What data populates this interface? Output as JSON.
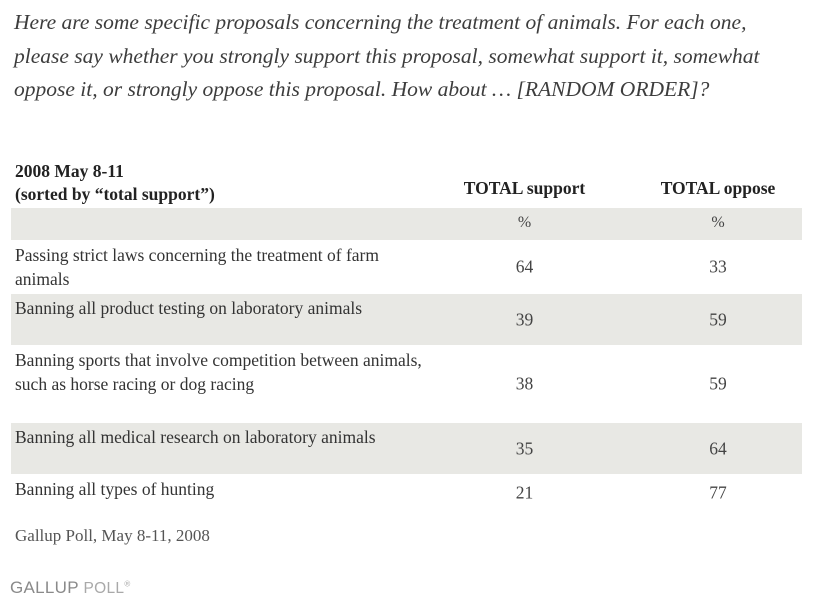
{
  "question": "Here are some specific proposals concerning the treatment of animals. For each one, please say whether you strongly support this proposal, somewhat support it, somewhat oppose it, or strongly oppose this proposal. How about … [RANDOM ORDER]?",
  "table": {
    "date": "2008 May 8-11",
    "sort_note": "(sorted by “total support”)",
    "col_support": "TOTAL support",
    "col_oppose": "TOTAL oppose",
    "unit_support": "%",
    "unit_oppose": "%",
    "rows": [
      {
        "label": "Passing strict laws concerning the treatment of farm animals",
        "support": "64",
        "oppose": "33"
      },
      {
        "label": "Banning all product testing on laboratory animals",
        "support": "39",
        "oppose": "59"
      },
      {
        "label": "Banning sports that involve competition between animals, such as horse racing or dog racing",
        "support": "38",
        "oppose": "59"
      },
      {
        "label": "Banning all medical research on laboratory animals",
        "support": "35",
        "oppose": "64"
      },
      {
        "label": "Banning all types of hunting",
        "support": "21",
        "oppose": "77"
      }
    ]
  },
  "source": "Gallup Poll, May 8-11, 2008",
  "logo": {
    "text_main": "GALLUP",
    "text_poll": " POLL",
    "mark": "®"
  }
}
